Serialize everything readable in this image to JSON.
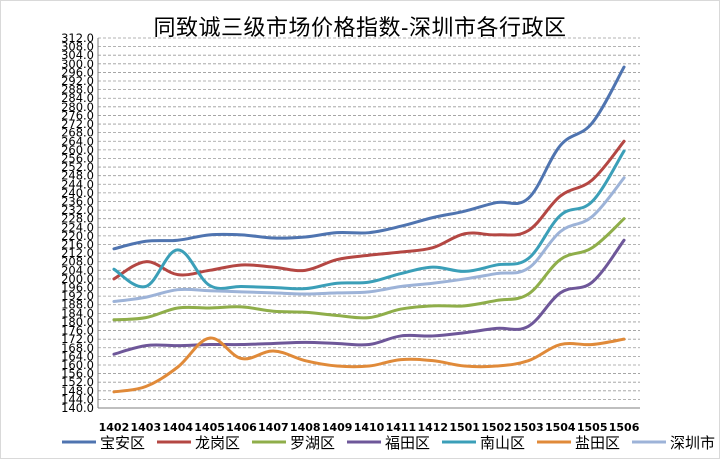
{
  "chart_data": {
    "type": "line",
    "title": "同致诚三级市场价格指数-深圳市各行政区",
    "xlabel": "",
    "ylabel": "",
    "categories": [
      "1402",
      "1403",
      "1404",
      "1405",
      "1406",
      "1407",
      "1408",
      "1409",
      "1410",
      "1411",
      "1412",
      "1501",
      "1502",
      "1503",
      "1504",
      "1505",
      "1506"
    ],
    "ylim": [
      140.0,
      312.0
    ],
    "yticks": [
      "140.0",
      "144.0",
      "148.0",
      "152.0",
      "156.0",
      "160.0",
      "164.0",
      "168.0",
      "172.0",
      "176.0",
      "180.0",
      "184.0",
      "188.0",
      "192.0",
      "196.0",
      "200.0",
      "204.0",
      "208.0",
      "212.0",
      "216.0",
      "220.0",
      "224.0",
      "228.0",
      "232.0",
      "236.0",
      "240.0",
      "244.0",
      "248.0",
      "252.0",
      "256.0",
      "260.0",
      "264.0",
      "268.0",
      "272.0",
      "276.0",
      "280.0",
      "284.0",
      "288.0",
      "292.0",
      "296.0",
      "300.0",
      "304.0",
      "308.0",
      "312.0"
    ],
    "grid": true,
    "legend_position": "bottom",
    "series": [
      {
        "name": "宝安区",
        "color": "#4f74b0",
        "values": [
          214.0,
          217.5,
          218.0,
          220.5,
          220.5,
          219.0,
          219.5,
          221.5,
          221.5,
          224.5,
          228.5,
          231.5,
          235.5,
          237.5,
          262.0,
          272.5,
          298.5
        ]
      },
      {
        "name": "龙岗区",
        "color": "#b44743",
        "values": [
          200.0,
          208.0,
          202.0,
          204.0,
          206.5,
          205.5,
          204.0,
          209.0,
          211.0,
          212.5,
          214.5,
          221.0,
          220.5,
          222.5,
          238.5,
          246.0,
          264.0
        ]
      },
      {
        "name": "罗湖区",
        "color": "#8fae4a",
        "values": [
          181.0,
          182.0,
          186.5,
          186.5,
          187.0,
          185.0,
          184.5,
          183.0,
          182.0,
          186.0,
          187.5,
          187.5,
          190.0,
          193.0,
          209.0,
          214.5,
          228.0
        ]
      },
      {
        "name": "福田区",
        "color": "#6e5799",
        "values": [
          165.0,
          169.0,
          169.0,
          169.5,
          169.5,
          170.0,
          170.5,
          170.0,
          169.5,
          173.5,
          173.5,
          175.0,
          177.0,
          178.0,
          193.5,
          198.5,
          218.0
        ]
      },
      {
        "name": "南山区",
        "color": "#3b9fb8",
        "values": [
          204.5,
          196.5,
          213.5,
          197.0,
          196.5,
          196.0,
          195.5,
          198.0,
          198.5,
          202.5,
          205.5,
          203.5,
          206.5,
          209.5,
          229.5,
          236.0,
          259.5
        ]
      },
      {
        "name": "盐田区",
        "color": "#e08a39",
        "values": [
          147.5,
          150.0,
          159.0,
          172.5,
          163.0,
          166.5,
          162.0,
          159.5,
          159.5,
          162.5,
          162.0,
          159.5,
          159.5,
          162.0,
          169.5,
          169.5,
          172.0
        ]
      },
      {
        "name": "深圳市",
        "color": "#9db3d8",
        "values": [
          189.5,
          191.5,
          195.0,
          194.5,
          194.0,
          193.5,
          193.0,
          193.5,
          194.0,
          196.5,
          198.0,
          200.0,
          202.5,
          205.0,
          222.0,
          229.0,
          247.0
        ]
      }
    ]
  }
}
